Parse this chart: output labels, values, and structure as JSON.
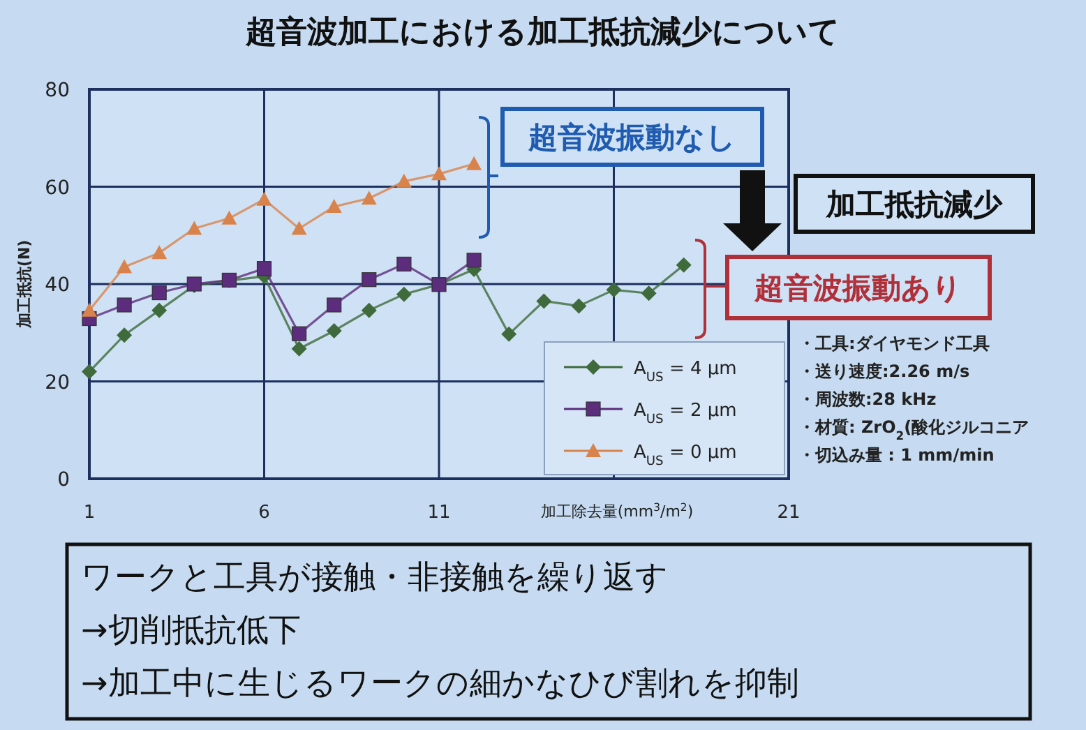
{
  "chart_data": {
    "type": "line",
    "title": "超音波加工における加工抵抗減少について",
    "xlabel": "加工除去量(mm$^{3}$/m$^{2}$)",
    "ylabel": "加工抵抗(N)",
    "xlim": [
      1,
      21
    ],
    "xticks": [
      1,
      6,
      11,
      {
        "value": 16,
        "label": null
      },
      21
    ],
    "ylim": [
      0,
      80
    ],
    "yticks": [
      0,
      20,
      40,
      60,
      80
    ],
    "grid": true,
    "legend": "bottom right",
    "line_style": "solid",
    "series": [
      {
        "name": "A$_{US}$ = 4 µm",
        "color": "#3f6b3c",
        "marker": "diamond",
        "x": [
          1,
          2,
          3,
          4,
          5,
          6,
          7,
          8,
          9,
          10,
          11,
          12,
          13,
          14,
          15,
          16,
          17,
          18
        ],
        "values": [
          22,
          29.5,
          34.6,
          39.7,
          40.7,
          41.6,
          26.7,
          30.4,
          34.6,
          37.9,
          39.9,
          43,
          29.7,
          36.5,
          35.5,
          38.8,
          38.1,
          43.9
        ]
      },
      {
        "name": "A$_{US}$ = 2 µm",
        "color": "#5b2d7c",
        "marker": "square",
        "x": [
          1,
          2,
          3,
          4,
          5,
          6,
          7,
          8,
          9,
          10,
          11,
          12
        ],
        "values": [
          32.9,
          35.7,
          38.2,
          40,
          40.8,
          43.2,
          29.8,
          35.7,
          40.9,
          44.1,
          39.9,
          44.9
        ]
      },
      {
        "name": "A$_{US}$ = 0 µm",
        "color": "#d9834c",
        "marker": "triangle",
        "x": [
          1,
          2,
          3,
          4,
          5,
          6,
          7,
          8,
          9,
          10,
          11,
          12
        ],
        "values": [
          34.6,
          43.5,
          46.4,
          51.4,
          53.5,
          57.4,
          51.4,
          55.9,
          57.6,
          61.1,
          62.6,
          64.7
        ]
      }
    ],
    "annotations": [
      "超音波振動なし",
      "加工抵抗減少",
      "超音波振動あり",
      "・工具:ダイヤモンド工具",
      "・送り速度:2.26 m/s",
      "・周波数:28 kHz",
      "・材質: ZrO$_{2}$(酸化ジルコニア",
      "・切込み量 : 1 mm/min",
      "ワークと工具が接触・非接触を繰り返す",
      "→切削抵抗低下",
      "→加工中に生じるワークの細かなひび割れを抑制"
    ]
  }
}
